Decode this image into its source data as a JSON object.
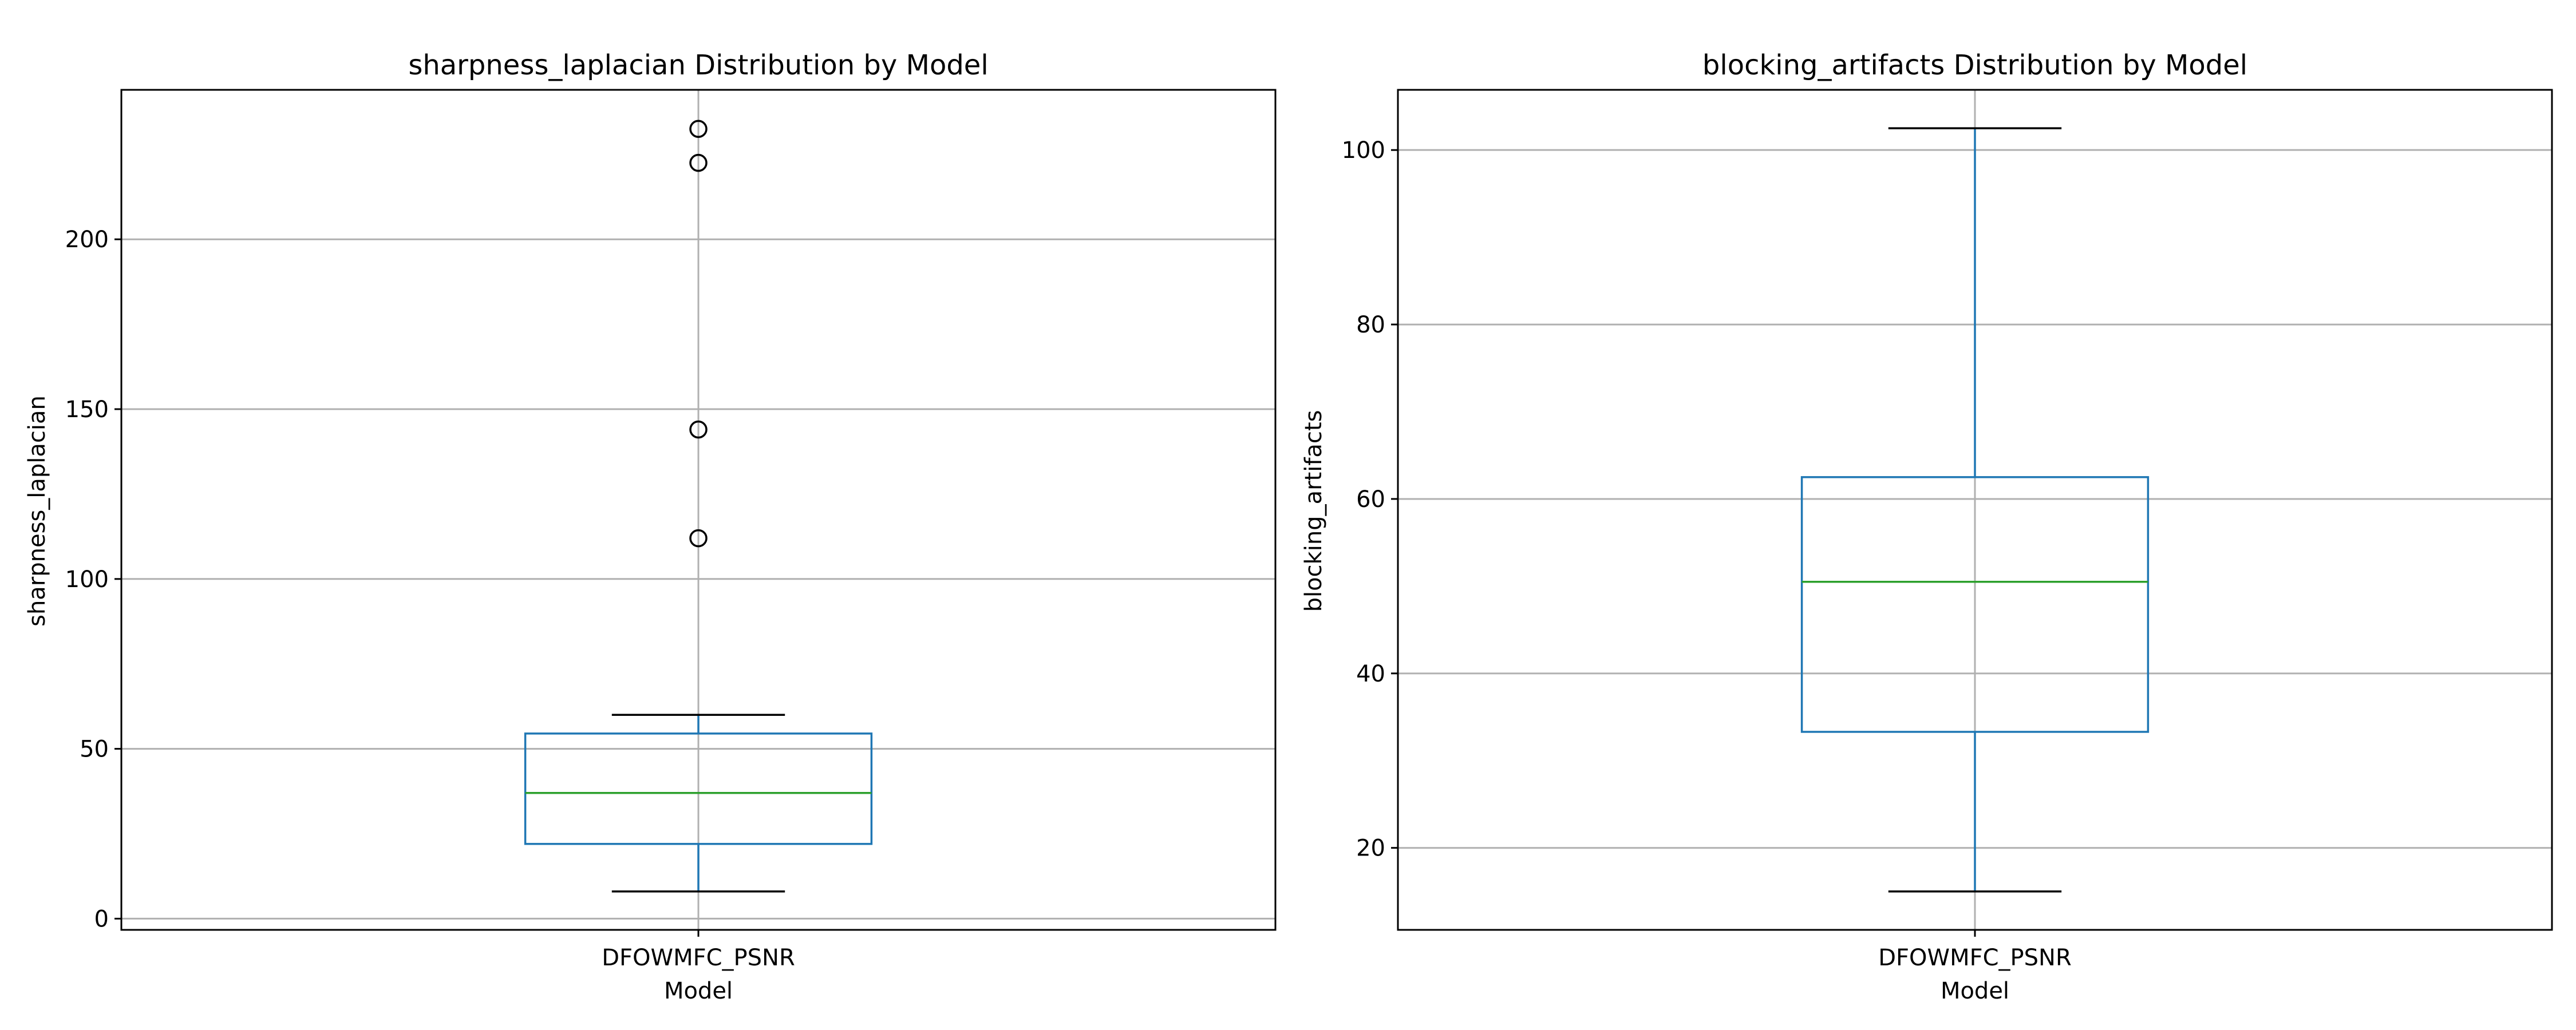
{
  "chart_data": [
    {
      "type": "box",
      "title": "sharpness_laplacian Distribution by Model",
      "xlabel": "Model",
      "ylabel": "sharpness_laplacian",
      "categories": [
        "DFOWMFC_PSNR"
      ],
      "ylim": [
        -3.3,
        244.0
      ],
      "yticks": [
        0,
        50,
        100,
        150,
        200
      ],
      "grid": true,
      "boxes": [
        {
          "category": "DFOWMFC_PSNR",
          "whisker_low": 8,
          "q1": 22,
          "median": 37,
          "q3": 54.5,
          "whisker_high": 60,
          "outliers": [
            112,
            144,
            222.5,
            232.5
          ]
        }
      ]
    },
    {
      "type": "box",
      "title": "blocking_artifacts Distribution by Model",
      "xlabel": "Model",
      "ylabel": "blocking_artifacts",
      "categories": [
        "DFOWMFC_PSNR"
      ],
      "ylim": [
        10.6,
        106.9
      ],
      "yticks": [
        20,
        40,
        60,
        80,
        100
      ],
      "grid": true,
      "boxes": [
        {
          "category": "DFOWMFC_PSNR",
          "whisker_low": 15,
          "q1": 33.3,
          "median": 50.5,
          "q3": 62.5,
          "whisker_high": 102.5,
          "outliers": []
        }
      ]
    }
  ],
  "colors": {
    "box": "#1f77b4",
    "median": "#2ca02c",
    "cap": "#000000",
    "grid": "#b0b0b0",
    "outlier": "#000000"
  }
}
